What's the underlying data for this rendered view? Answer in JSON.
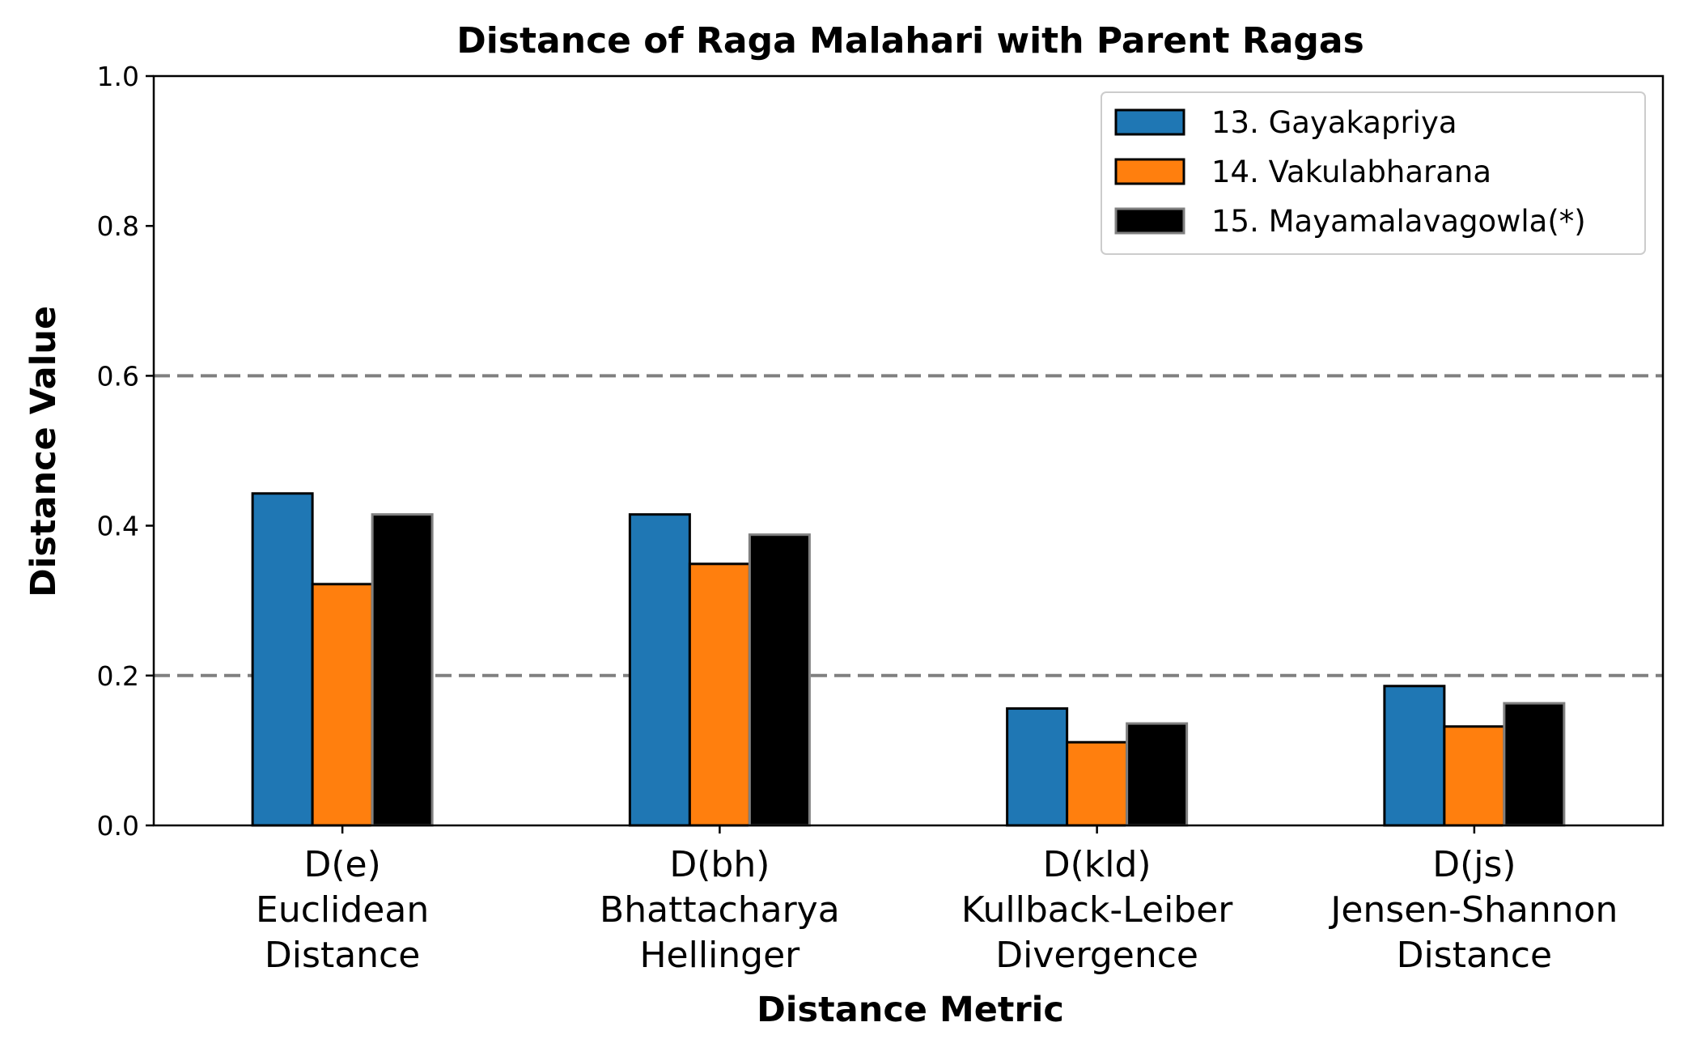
{
  "chart_data": {
    "type": "bar",
    "title": "Distance of Raga Malahari with Parent Ragas",
    "xlabel": "Distance Metric",
    "ylabel": "Distance Value",
    "ylim": [
      0,
      1.0
    ],
    "yticks": [
      "0.0",
      "0.2",
      "0.4",
      "0.6",
      "0.8",
      "1.0"
    ],
    "reference_lines": [
      0.2,
      0.6
    ],
    "legend_position": "top-right",
    "categories": [
      [
        "D(e)",
        "Euclidean",
        "Distance"
      ],
      [
        "D(bh)",
        "Bhattacharya",
        "Hellinger"
      ],
      [
        "D(kld)",
        "Kullback-Leiber",
        "Divergence"
      ],
      [
        "D(js)",
        "Jensen-Shannon",
        "Distance"
      ]
    ],
    "series": [
      {
        "name": "13. Gayakapriya",
        "color": "#1f77b4",
        "edge": "#000000",
        "values": [
          0.443,
          0.415,
          0.156,
          0.186
        ]
      },
      {
        "name": "14. Vakulabharana",
        "color": "#ff7f0e",
        "edge": "#000000",
        "values": [
          0.322,
          0.349,
          0.111,
          0.132
        ]
      },
      {
        "name": "15. Mayamalavagowla(*)",
        "color": "#000000",
        "edge": "#808080",
        "values": [
          0.415,
          0.388,
          0.136,
          0.163
        ]
      }
    ],
    "colors": {
      "reference_line": "#808080",
      "axes": "#000000"
    }
  }
}
